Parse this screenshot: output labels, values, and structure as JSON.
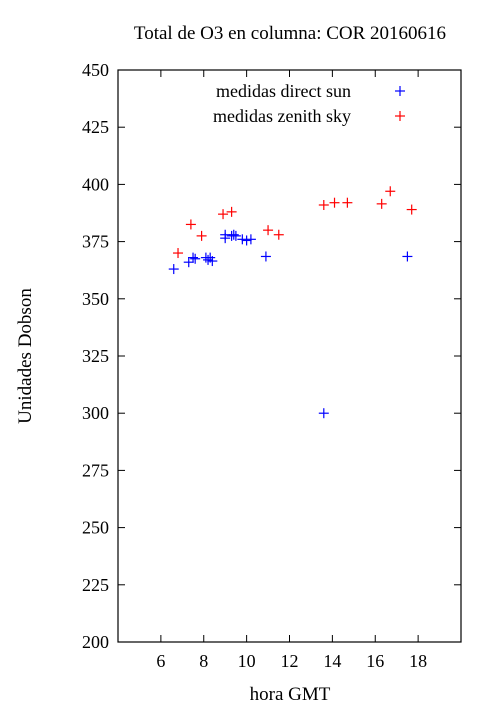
{
  "chart_data": {
    "type": "scatter",
    "title": "Total de O3 en columna: COR 20160616",
    "xlabel": "hora GMT",
    "ylabel": "Unidades Dobson",
    "xlim": [
      4,
      20
    ],
    "ylim": [
      200,
      450
    ],
    "xticks": [
      6,
      8,
      10,
      12,
      14,
      16,
      18
    ],
    "yticks": [
      200,
      225,
      250,
      275,
      300,
      325,
      350,
      375,
      400,
      425,
      450
    ],
    "grid": false,
    "legend": "top-right",
    "series": [
      {
        "name": "medidas direct sun",
        "color": "#0000ff",
        "marker": "+",
        "points": [
          [
            6.6,
            363
          ],
          [
            7.3,
            366
          ],
          [
            7.5,
            368
          ],
          [
            7.6,
            367.5
          ],
          [
            8.1,
            368
          ],
          [
            8.2,
            367
          ],
          [
            8.3,
            368
          ],
          [
            8.4,
            366.5
          ],
          [
            9.0,
            378
          ],
          [
            9.0,
            376.5
          ],
          [
            9.3,
            377.5
          ],
          [
            9.4,
            378
          ],
          [
            9.5,
            377.5
          ],
          [
            9.8,
            376
          ],
          [
            10.0,
            375.5
          ],
          [
            10.2,
            376
          ],
          [
            10.9,
            368.5
          ],
          [
            13.6,
            300
          ],
          [
            17.5,
            368.5
          ]
        ]
      },
      {
        "name": "medidas zenith sky",
        "color": "#ff0000",
        "marker": "+",
        "points": [
          [
            6.8,
            370
          ],
          [
            7.4,
            382.5
          ],
          [
            7.9,
            377.5
          ],
          [
            8.9,
            387
          ],
          [
            9.3,
            388
          ],
          [
            11.0,
            380
          ],
          [
            11.5,
            378
          ],
          [
            13.6,
            391
          ],
          [
            14.1,
            392
          ],
          [
            14.7,
            392
          ],
          [
            16.3,
            391.5
          ],
          [
            16.7,
            397
          ],
          [
            17.7,
            389
          ]
        ]
      }
    ]
  }
}
